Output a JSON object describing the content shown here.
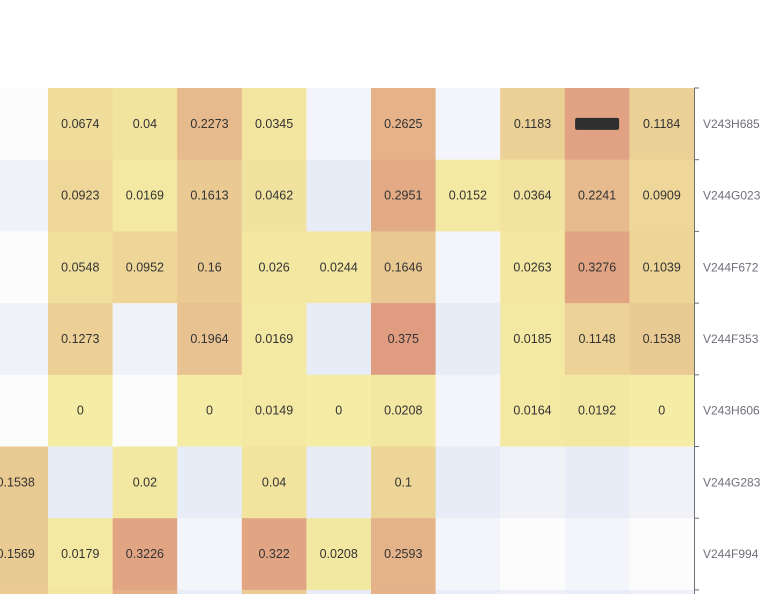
{
  "chart_data": {
    "type": "heatmap",
    "title": "",
    "xlabel": "",
    "ylabel": "",
    "y_axis_position": "right",
    "grid": false,
    "color_scale": {
      "stops": [
        [
          0,
          "#f5eda5"
        ],
        [
          0.1,
          "#edd597"
        ],
        [
          0.2,
          "#e8c190"
        ],
        [
          0.3,
          "#e3a985"
        ],
        [
          0.375,
          "#e09c80"
        ]
      ]
    },
    "rows": [
      {
        "label": "V243H685",
        "values": [
          null,
          0.0674,
          0.04,
          0.2273,
          0.0345,
          null,
          0.2625,
          null,
          0.1183,
          "redacted",
          0.1184
        ],
        "empty_colors": [
          "#fcfcfd",
          null,
          null,
          null,
          null,
          "#f4f5fa",
          null,
          "#f4f5fa",
          null,
          "#e0a283",
          null
        ]
      },
      {
        "label": "V244G023",
        "values": [
          null,
          0.0923,
          0.0169,
          0.1613,
          0.0462,
          null,
          0.2951,
          0.0152,
          0.0364,
          0.2241,
          0.0909
        ],
        "empty_colors": [
          "#f1f2f8",
          null,
          null,
          null,
          null,
          "#e8ecf6",
          null,
          null,
          null,
          null,
          null
        ]
      },
      {
        "label": "V244F672",
        "values": [
          null,
          0.0548,
          0.0952,
          0.16,
          0.026,
          0.0244,
          0.1646,
          null,
          0.0263,
          0.3276,
          0.1039
        ],
        "empty_colors": [
          "#fcfcfd",
          null,
          null,
          null,
          null,
          null,
          null,
          "#f4f5fa",
          null,
          null,
          null
        ]
      },
      {
        "label": "V244F353",
        "values": [
          null,
          0.1273,
          null,
          0.1964,
          0.0169,
          null,
          0.375,
          null,
          0.0185,
          0.1148,
          0.1538
        ],
        "empty_colors": [
          "#f1f2f8",
          null,
          "#f1f2f8",
          null,
          null,
          "#e8ecf6",
          null,
          "#e8ecf6",
          null,
          null,
          null
        ]
      },
      {
        "label": "V243H606",
        "values": [
          null,
          0,
          null,
          0,
          0.0149,
          0,
          0.0208,
          null,
          0.0164,
          0.0192,
          0
        ],
        "empty_colors": [
          "#fcfcfd",
          null,
          "#fcfcfd",
          null,
          null,
          null,
          null,
          "#f4f5fa",
          null,
          null,
          null
        ]
      },
      {
        "label": "V244G283",
        "values": [
          0.1538,
          null,
          0.02,
          null,
          0.04,
          null,
          0.1,
          null,
          null,
          null,
          null
        ],
        "empty_colors": [
          null,
          "#e8ecf6",
          null,
          "#e8ecf6",
          null,
          "#e8ecf6",
          null,
          "#e8ecf6",
          "#f1f2f8",
          "#e8ecf6",
          "#f1f2f8"
        ]
      },
      {
        "label": "V244F994",
        "values": [
          0.1569,
          0.0179,
          0.3226,
          null,
          0.322,
          0.0208,
          0.2593,
          null,
          null,
          null,
          null
        ],
        "empty_colors": [
          null,
          null,
          null,
          "#f4f5fa",
          null,
          null,
          null,
          "#f4f5fa",
          "#fcfcfd",
          "#f4f5fa",
          "#fcfcfd"
        ]
      },
      {
        "label": "",
        "values": [
          null,
          null,
          null,
          null,
          null,
          null,
          null,
          null,
          null,
          null,
          null
        ],
        "empty_colors": [
          "#ecca93",
          "#f3e7a0",
          "#e5b089",
          "#e8ecf6",
          "#ecca93",
          "#e8ecf6",
          "#e5b18a",
          "#e8ecf6",
          "#eef0f7",
          "#e8ecf6",
          "#eef0f7"
        ]
      }
    ]
  }
}
